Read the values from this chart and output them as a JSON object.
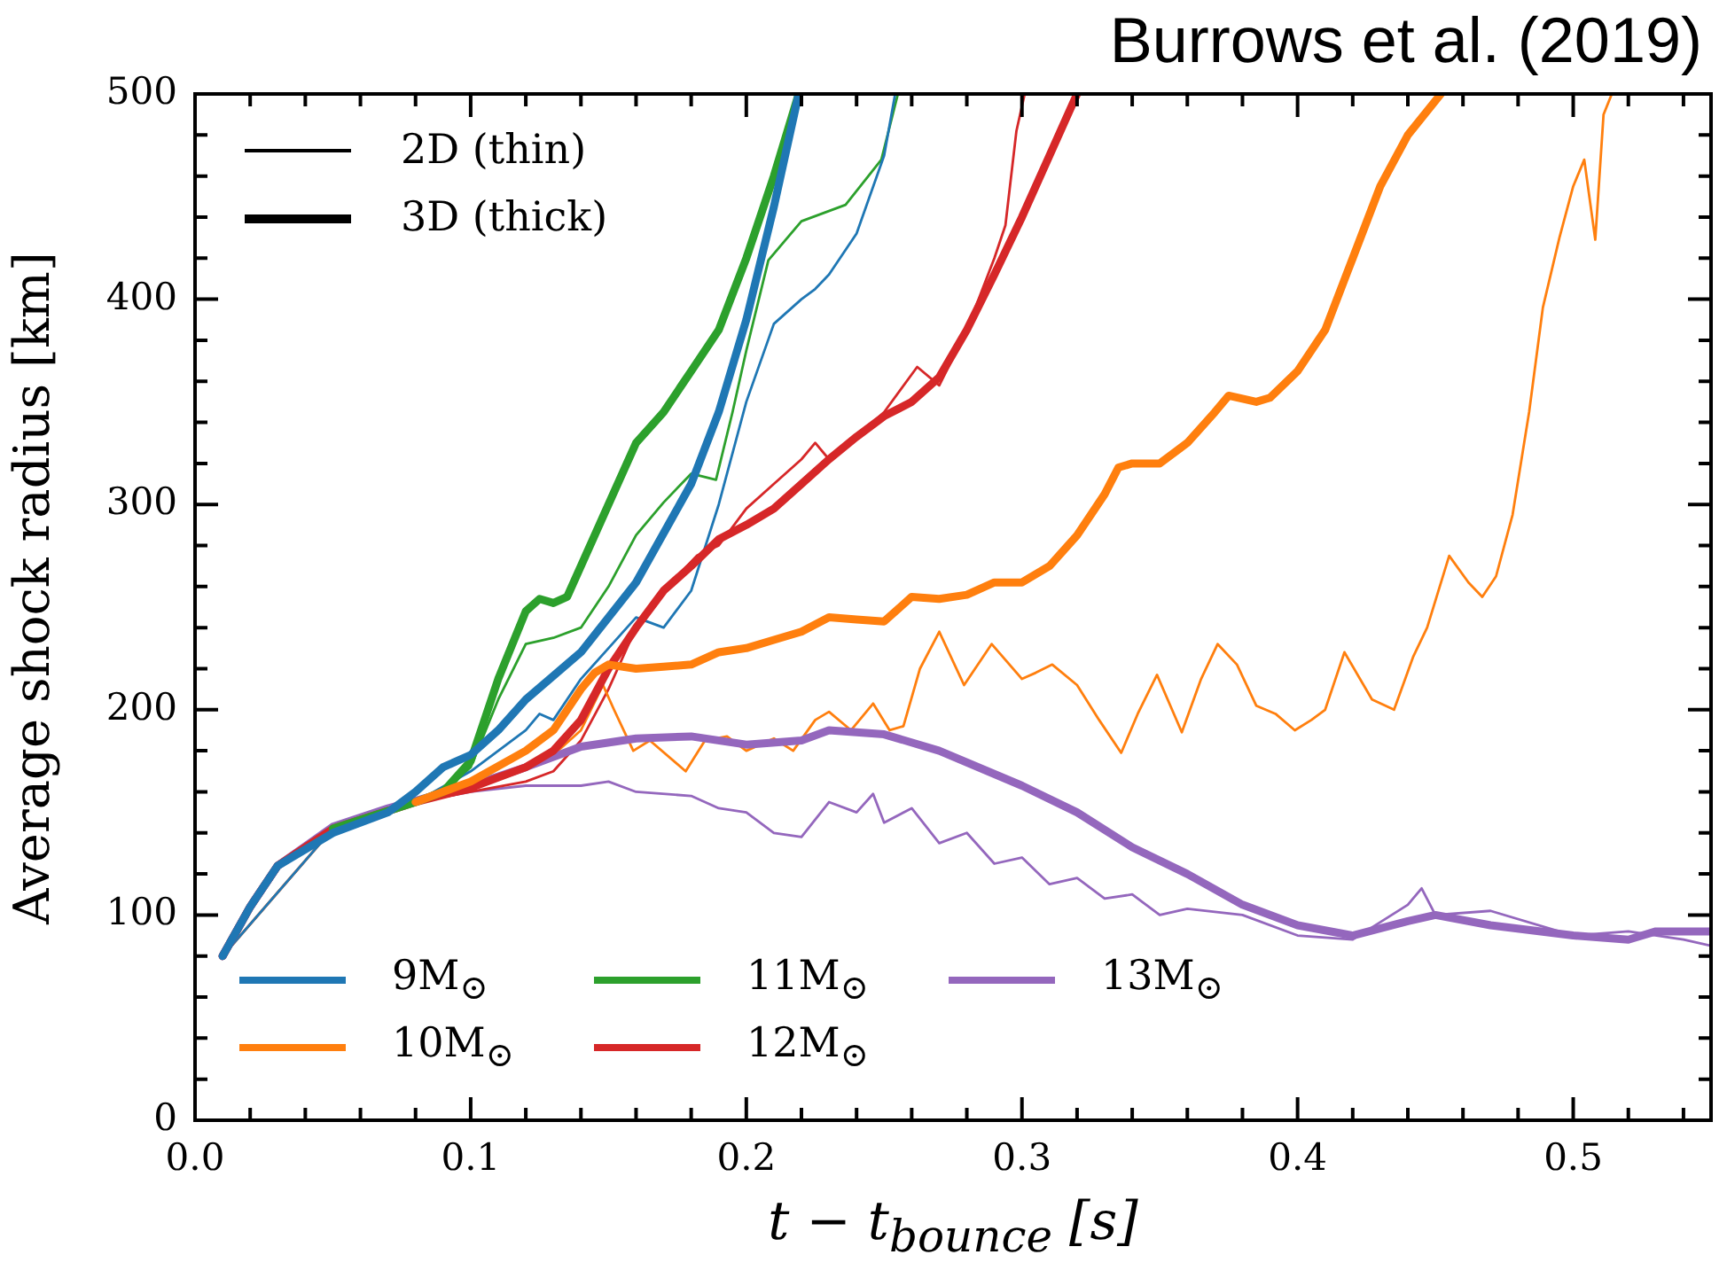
{
  "chart_data": {
    "type": "line",
    "title": "Burrows et al. (2019)",
    "xlabel": "t − t$_{bounce}$ [s]",
    "ylabel": "Average shock radius [km]",
    "annotations": [
      "2D (thin)",
      "3D (thick)"
    ],
    "xlim": [
      0,
      0.55
    ],
    "ylim": [
      0,
      500
    ],
    "xticks": [
      {
        "value": 0,
        "label": "0.0"
      },
      {
        "value": 0.02,
        "label": null
      },
      {
        "value": 0.04,
        "label": null
      },
      {
        "value": 0.06,
        "label": null
      },
      {
        "value": 0.08,
        "label": null
      },
      0.1,
      {
        "value": 0.12,
        "label": null
      },
      {
        "value": 0.14,
        "label": null
      },
      {
        "value": 0.16,
        "label": null
      },
      {
        "value": 0.18,
        "label": null
      },
      0.2,
      {
        "value": 0.22,
        "label": null
      },
      {
        "value": 0.24,
        "label": null
      },
      {
        "value": 0.26,
        "label": null
      },
      {
        "value": 0.28,
        "label": null
      },
      0.3,
      {
        "value": 0.32,
        "label": null
      },
      {
        "value": 0.34,
        "label": null
      },
      {
        "value": 0.36,
        "label": null
      },
      {
        "value": 0.38,
        "label": null
      },
      0.4,
      {
        "value": 0.42,
        "label": null
      },
      {
        "value": 0.44,
        "label": null
      },
      {
        "value": 0.46,
        "label": null
      },
      {
        "value": 0.48,
        "label": null
      },
      0.5,
      {
        "value": 0.52,
        "label": null
      },
      {
        "value": 0.54,
        "label": null
      }
    ],
    "yticks": [
      0,
      {
        "value": 20,
        "label": null
      },
      {
        "value": 40,
        "label": null
      },
      {
        "value": 60,
        "label": null
      },
      {
        "value": 80,
        "label": null
      },
      100,
      {
        "value": 120,
        "label": null
      },
      {
        "value": 140,
        "label": null
      },
      {
        "value": 160,
        "label": null
      },
      {
        "value": 180,
        "label": null
      },
      200,
      {
        "value": 220,
        "label": null
      },
      {
        "value": 240,
        "label": null
      },
      {
        "value": 260,
        "label": null
      },
      {
        "value": 280,
        "label": null
      },
      300,
      {
        "value": 320,
        "label": null
      },
      {
        "value": 340,
        "label": null
      },
      {
        "value": 360,
        "label": null
      },
      {
        "value": 380,
        "label": null
      },
      400,
      {
        "value": 420,
        "label": null
      },
      {
        "value": 440,
        "label": null
      },
      {
        "value": 460,
        "label": null
      },
      {
        "value": 480,
        "label": null
      },
      500
    ],
    "grid": false,
    "legend": "bottom left",
    "marker": "none",
    "line_style": "solid",
    "series": [
      {
        "color": "#1f77b4",
        "x": [
          0.01,
          0.05,
          0.08,
          0.1,
          0.12,
          0.125,
          0.13,
          0.14,
          0.15,
          0.16,
          0.17,
          0.18,
          0.19,
          0.2,
          0.21,
          0.22,
          0.225,
          0.23,
          0.24,
          0.25,
          0.254
        ],
        "values": [
          80,
          142,
          155,
          170,
          190,
          198,
          195,
          215,
          230,
          245,
          240,
          258,
          300,
          350,
          388,
          400,
          405,
          412,
          432,
          470,
          500
        ]
      },
      {
        "color": "#ff7f0e",
        "x": [
          0.01,
          0.05,
          0.08,
          0.1,
          0.12,
          0.13,
          0.14,
          0.148,
          0.152,
          0.159,
          0.165,
          0.178,
          0.185,
          0.193,
          0.2,
          0.21,
          0.217,
          0.225,
          0.23,
          0.238,
          0.246,
          0.252,
          0.257,
          0.263,
          0.27,
          0.279,
          0.289,
          0.3,
          0.305,
          0.311,
          0.32,
          0.328,
          0.336,
          0.342,
          0.349,
          0.358,
          0.365,
          0.371,
          0.378,
          0.385,
          0.392,
          0.399,
          0.405,
          0.41,
          0.417,
          0.427,
          0.435,
          0.442,
          0.447,
          0.455,
          0.462,
          0.467,
          0.472,
          0.478,
          0.484,
          0.489,
          0.495,
          0.5,
          0.504,
          0.508,
          0.511,
          0.514
        ],
        "values": [
          80,
          142,
          155,
          164,
          172,
          178,
          190,
          212,
          200,
          180,
          185,
          170,
          185,
          187,
          180,
          186,
          180,
          195,
          199,
          190,
          203,
          190,
          192,
          220,
          238,
          212,
          232,
          215,
          218,
          222,
          212,
          195,
          179,
          198,
          217,
          189,
          215,
          232,
          222,
          202,
          198,
          190,
          195,
          200,
          228,
          205,
          200,
          226,
          240,
          275,
          262,
          255,
          265,
          295,
          345,
          396,
          430,
          455,
          468,
          429,
          490,
          500
        ]
      },
      {
        "color": "#2ca02c",
        "x": [
          0.08,
          0.09,
          0.1,
          0.11,
          0.12,
          0.13,
          0.14,
          0.15,
          0.16,
          0.17,
          0.18,
          0.189,
          0.195,
          0.2,
          0.208,
          0.22,
          0.236,
          0.249,
          0.255
        ],
        "values": [
          155,
          160,
          172,
          205,
          232,
          235,
          240,
          260,
          285,
          301,
          315,
          312,
          345,
          375,
          419,
          438,
          446,
          468,
          500
        ]
      },
      {
        "color": "#d62728",
        "x": [
          0.01,
          0.05,
          0.08,
          0.1,
          0.12,
          0.13,
          0.14,
          0.15,
          0.16,
          0.17,
          0.182,
          0.19,
          0.2,
          0.21,
          0.22,
          0.225,
          0.23,
          0.24,
          0.25,
          0.262,
          0.27,
          0.28,
          0.29,
          0.294,
          0.298,
          0.301
        ],
        "values": [
          80,
          142,
          155,
          160,
          165,
          170,
          185,
          210,
          240,
          258,
          275,
          280,
          298,
          310,
          322,
          330,
          322,
          333,
          345,
          367,
          358,
          385,
          420,
          436,
          482,
          500
        ]
      },
      {
        "color": "#9467bd",
        "x": [
          0.01,
          0.02,
          0.03,
          0.05,
          0.08,
          0.1,
          0.12,
          0.14,
          0.15,
          0.16,
          0.18,
          0.19,
          0.2,
          0.21,
          0.22,
          0.23,
          0.24,
          0.246,
          0.25,
          0.26,
          0.27,
          0.28,
          0.29,
          0.3,
          0.31,
          0.32,
          0.33,
          0.34,
          0.35,
          0.36,
          0.38,
          0.4,
          0.42,
          0.44,
          0.445,
          0.45,
          0.47,
          0.5,
          0.52,
          0.54,
          0.55
        ],
        "values": [
          80,
          104,
          124,
          142,
          155,
          160,
          163,
          163,
          165,
          160,
          158,
          152,
          150,
          140,
          138,
          155,
          150,
          159,
          145,
          152,
          135,
          140,
          125,
          128,
          115,
          118,
          108,
          110,
          100,
          103,
          100,
          90,
          88,
          105,
          113,
          100,
          102,
          90,
          92,
          88,
          85
        ]
      },
      {
        "name": "9M$_{⊙}$",
        "color": "#1f77b4",
        "x": [
          0.01,
          0.02,
          0.03,
          0.05,
          0.07,
          0.08,
          0.09,
          0.1,
          0.11,
          0.12,
          0.14,
          0.16,
          0.18,
          0.19,
          0.2,
          0.21,
          0.219
        ],
        "values": [
          80,
          104,
          124,
          140,
          150,
          160,
          172,
          178,
          190,
          205,
          228,
          262,
          310,
          345,
          390,
          445,
          500
        ]
      },
      {
        "name": "10M$_{⊙}$",
        "color": "#ff7f0e",
        "x": [
          0.08,
          0.1,
          0.12,
          0.13,
          0.14,
          0.145,
          0.15,
          0.16,
          0.17,
          0.18,
          0.19,
          0.2,
          0.21,
          0.22,
          0.23,
          0.24,
          0.25,
          0.26,
          0.27,
          0.28,
          0.29,
          0.3,
          0.31,
          0.32,
          0.33,
          0.335,
          0.34,
          0.35,
          0.36,
          0.37,
          0.375,
          0.385,
          0.39,
          0.4,
          0.41,
          0.42,
          0.43,
          0.44,
          0.452
        ],
        "values": [
          155,
          165,
          180,
          190,
          210,
          218,
          222,
          220,
          221,
          222,
          228,
          230,
          234,
          238,
          245,
          244,
          243,
          255,
          254,
          256,
          262,
          262,
          270,
          285,
          305,
          318,
          320,
          320,
          330,
          345,
          353,
          350,
          352,
          365,
          385,
          420,
          455,
          480,
          500
        ]
      },
      {
        "name": "11M$_{⊙}$",
        "color": "#2ca02c",
        "x": [
          0.05,
          0.08,
          0.09,
          0.1,
          0.11,
          0.12,
          0.125,
          0.13,
          0.135,
          0.14,
          0.15,
          0.16,
          0.17,
          0.18,
          0.19,
          0.2,
          0.21,
          0.219
        ],
        "values": [
          142,
          155,
          160,
          175,
          215,
          248,
          254,
          252,
          255,
          270,
          300,
          330,
          345,
          365,
          385,
          420,
          460,
          500
        ]
      },
      {
        "name": "12M$_{⊙}$",
        "color": "#d62728",
        "x": [
          0.01,
          0.02,
          0.03,
          0.05,
          0.08,
          0.1,
          0.12,
          0.13,
          0.14,
          0.15,
          0.16,
          0.17,
          0.18,
          0.19,
          0.2,
          0.21,
          0.22,
          0.23,
          0.24,
          0.25,
          0.26,
          0.27,
          0.28,
          0.29,
          0.3,
          0.31,
          0.32
        ],
        "values": [
          80,
          104,
          124,
          142,
          155,
          162,
          172,
          180,
          195,
          220,
          240,
          258,
          270,
          283,
          290,
          298,
          310,
          322,
          333,
          343,
          350,
          362,
          385,
          412,
          440,
          470,
          500
        ]
      },
      {
        "name": "13M$_{⊙}$",
        "color": "#9467bd",
        "x": [
          0.01,
          0.02,
          0.03,
          0.05,
          0.07,
          0.1,
          0.12,
          0.14,
          0.16,
          0.18,
          0.2,
          0.22,
          0.23,
          0.25,
          0.27,
          0.3,
          0.32,
          0.34,
          0.36,
          0.38,
          0.4,
          0.42,
          0.44,
          0.45,
          0.47,
          0.5,
          0.52,
          0.53,
          0.55
        ],
        "values": [
          80,
          104,
          124,
          143,
          152,
          163,
          172,
          182,
          186,
          187,
          183,
          185,
          190,
          188,
          180,
          163,
          150,
          133,
          120,
          105,
          95,
          90,
          97,
          100,
          95,
          90,
          88,
          92,
          92
        ]
      }
    ]
  }
}
